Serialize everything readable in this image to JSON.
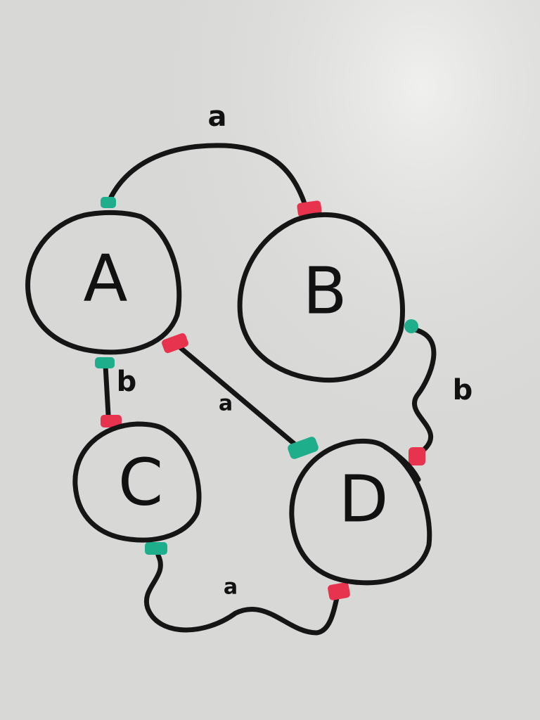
{
  "diagram": {
    "nodes": [
      {
        "id": "A",
        "label": "A"
      },
      {
        "id": "B",
        "label": "B"
      },
      {
        "id": "C",
        "label": "C"
      },
      {
        "id": "D",
        "label": "D"
      }
    ],
    "edges": [
      {
        "from": "A",
        "to": "B",
        "label": "a"
      },
      {
        "from": "A",
        "to": "C",
        "label": "b"
      },
      {
        "from": "A",
        "to": "D",
        "label": "a"
      },
      {
        "from": "B",
        "to": "D",
        "label": "b"
      },
      {
        "from": "C",
        "to": "D",
        "label": "a"
      }
    ]
  },
  "colors": {
    "board": "#d8d8d6",
    "ink": "#151515",
    "source_marker": "#1fae8c",
    "target_marker": "#e8334f"
  }
}
